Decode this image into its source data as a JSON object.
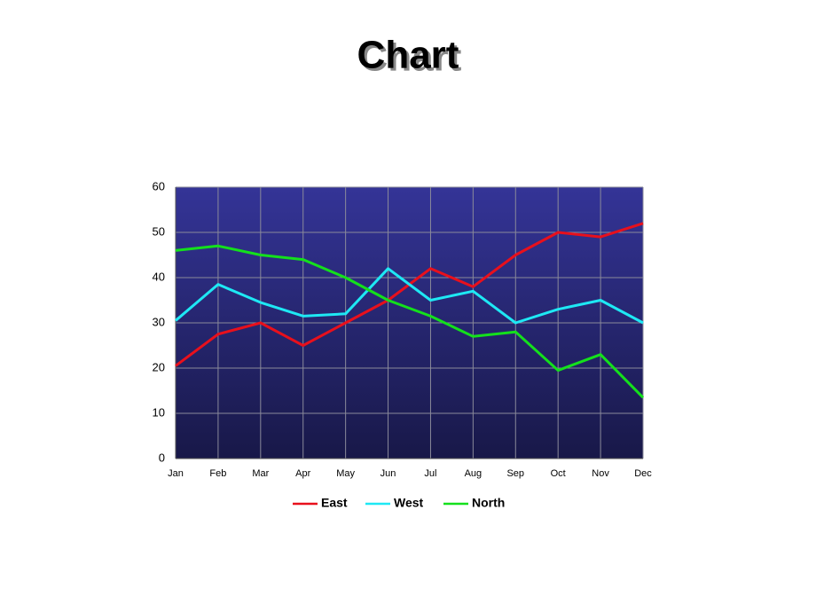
{
  "chart_data": {
    "type": "line",
    "title": "Chart",
    "categories": [
      "Jan",
      "Feb",
      "Mar",
      "Apr",
      "May",
      "Jun",
      "Jul",
      "Aug",
      "Sep",
      "Oct",
      "Nov",
      "Dec"
    ],
    "series": [
      {
        "name": "East",
        "color": "#e8101c",
        "values": [
          20.5,
          27.5,
          30,
          25,
          30,
          35,
          42,
          38,
          45,
          50,
          49,
          52
        ]
      },
      {
        "name": "West",
        "color": "#1ee8f4",
        "values": [
          30.5,
          38.5,
          34.5,
          31.5,
          32,
          42,
          35,
          37,
          30,
          33,
          35,
          30
        ]
      },
      {
        "name": "North",
        "color": "#14e01c",
        "values": [
          46,
          47,
          45,
          44,
          40,
          35,
          31.5,
          27,
          28,
          19.5,
          23,
          13.5
        ]
      }
    ],
    "ylim": [
      0,
      60
    ],
    "yticks": [
      0,
      10,
      20,
      30,
      40,
      50,
      60
    ],
    "grid": true,
    "legend": "bottom"
  }
}
